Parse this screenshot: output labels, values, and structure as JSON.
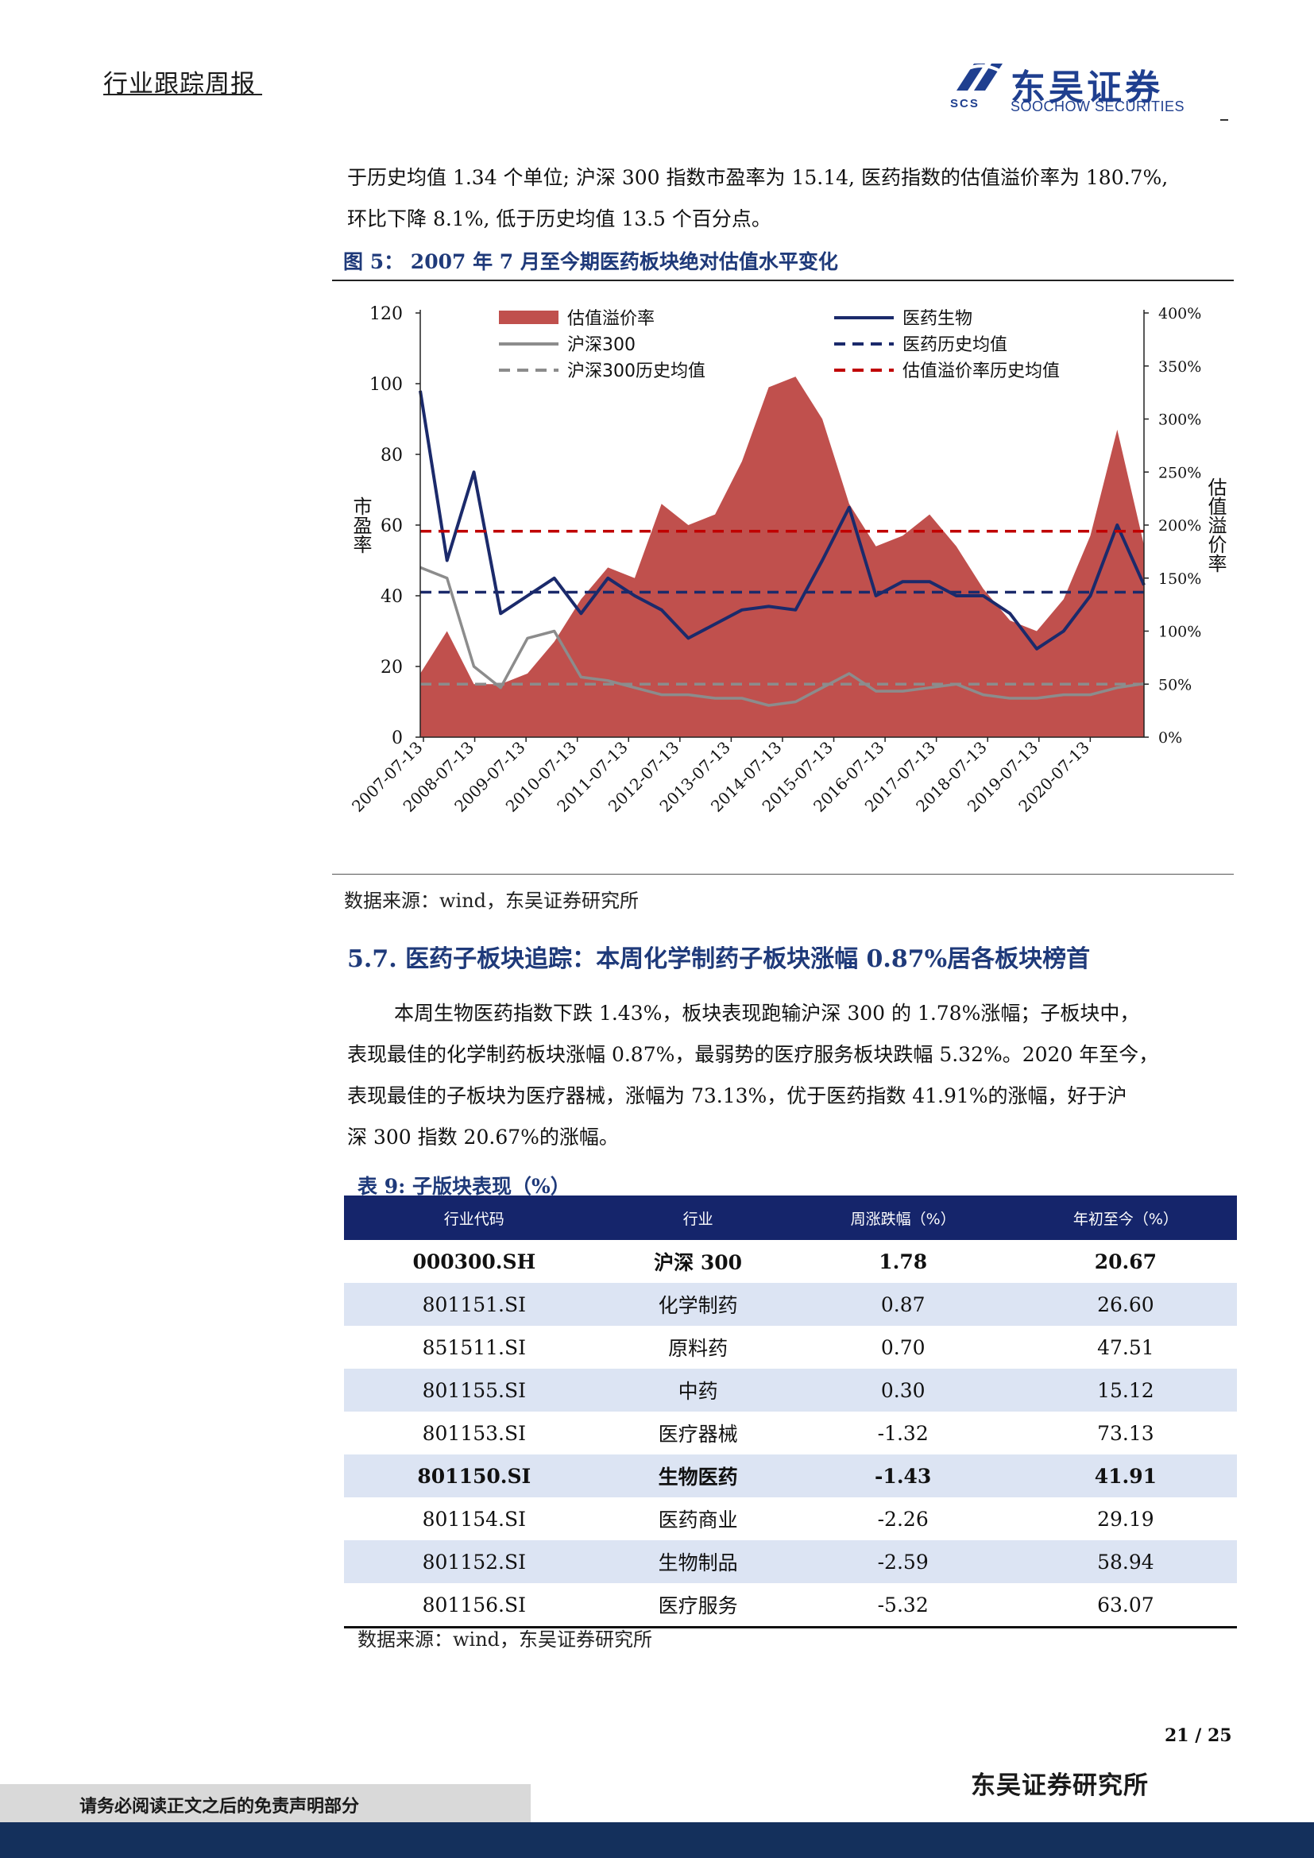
{
  "header": {
    "report_type": "行业跟踪周报",
    "logo_cn": "东吴证券",
    "logo_en": "SOOCHOW SECURITIES",
    "logo_abbr": "SCS"
  },
  "intro": {
    "line1": "于历史均值 1.34 个单位; 沪深 300 指数市盈率为 15.14, 医药指数的估值溢价率为 180.7%,",
    "line2": "环比下降 8.1%, 低于历史均值 13.5 个百分点。"
  },
  "figure5": {
    "title": "图 5：  2007 年 7 月至今期医药板块绝对估值水平变化",
    "source": "数据来源：wind，东吴证券研究所"
  },
  "chart_data": {
    "type": "line",
    "x": [
      "2007-07-13",
      "2008-01-13",
      "2008-07-13",
      "2009-01-13",
      "2009-07-13",
      "2010-01-13",
      "2010-07-13",
      "2011-01-13",
      "2011-07-13",
      "2012-01-13",
      "2012-07-13",
      "2013-01-13",
      "2013-07-13",
      "2014-01-13",
      "2014-07-13",
      "2015-01-13",
      "2015-07-13",
      "2016-01-13",
      "2016-07-13",
      "2017-01-13",
      "2017-07-13",
      "2018-01-13",
      "2018-07-13",
      "2019-01-13",
      "2019-07-13",
      "2020-01-13",
      "2020-07-13",
      "2020-11-20"
    ],
    "x_ticks": [
      "2007-07-13",
      "2008-07-13",
      "2009-07-13",
      "2010-07-13",
      "2011-07-13",
      "2012-07-13",
      "2013-07-13",
      "2014-07-13",
      "2015-07-13",
      "2016-07-13",
      "2017-07-13",
      "2018-07-13",
      "2019-07-13",
      "2020-07-13"
    ],
    "ylabel": "市盈率",
    "ylabel_right": "估值溢价率",
    "ylim": [
      0,
      120
    ],
    "y_ticks": [
      0,
      20,
      40,
      60,
      80,
      100,
      120
    ],
    "ylim_right": [
      0,
      4
    ],
    "y_ticks_right": [
      "0%",
      "50%",
      "100%",
      "150%",
      "200%",
      "250%",
      "300%",
      "350%",
      "400%"
    ],
    "legend_position": "top",
    "series": [
      {
        "name": "估值溢价率",
        "axis": "right",
        "kind": "area",
        "color": "#c0504d",
        "values": [
          0.6,
          1.0,
          0.5,
          0.5,
          0.6,
          0.9,
          1.3,
          1.6,
          1.5,
          2.2,
          2.0,
          2.1,
          2.6,
          3.3,
          3.4,
          3.0,
          2.2,
          1.8,
          1.9,
          2.1,
          1.8,
          1.4,
          1.1,
          1.0,
          1.3,
          1.9,
          2.9,
          1.81
        ]
      },
      {
        "name": "医药生物",
        "axis": "left",
        "kind": "line",
        "color": "#1b2a6b",
        "values": [
          98,
          50,
          75,
          35,
          40,
          45,
          35,
          45,
          40,
          36,
          28,
          32,
          36,
          37,
          36,
          50,
          65,
          40,
          44,
          44,
          40,
          40,
          35,
          25,
          30,
          40,
          60,
          43
        ]
      },
      {
        "name": "沪深300",
        "axis": "left",
        "kind": "line",
        "color": "#8c8c8c",
        "values": [
          48,
          45,
          20,
          14,
          28,
          30,
          17,
          16,
          14,
          12,
          12,
          11,
          11,
          9,
          10,
          14,
          18,
          13,
          13,
          14,
          15,
          12,
          11,
          11,
          12,
          12,
          14,
          15.14
        ]
      },
      {
        "name": "沪深300历史均值",
        "axis": "left",
        "kind": "dashed",
        "color": "#8c8c8c",
        "value": 15
      },
      {
        "name": "医药历史均值",
        "axis": "left",
        "kind": "dashed",
        "color": "#1b2a6b",
        "value": 41
      },
      {
        "name": "估值溢价率历史均值",
        "axis": "right",
        "kind": "dashed",
        "color": "#c00000",
        "value": 1.942
      }
    ]
  },
  "section57": {
    "title": "5.7.  医药子板块追踪：本周化学制药子板块涨幅 0.87%居各板块榜首",
    "lines": [
      "本周生物医药指数下跌 1.43%，板块表现跑输沪深 300 的 1.78%涨幅；子板块中，",
      "表现最佳的化学制药板块涨幅 0.87%，最弱势的医疗服务板块跌幅 5.32%。2020 年至今，",
      "表现最佳的子板块为医疗器械，涨幅为 73.13%，优于医药指数 41.91%的涨幅，好于沪",
      "深 300 指数 20.67%的涨幅。"
    ]
  },
  "table9": {
    "title": "表 9:  子版块表现（%）",
    "headers": [
      "行业代码",
      "行业",
      "周涨跌幅（%）",
      "年初至今（%）"
    ],
    "rows": [
      {
        "code": "000300.SH",
        "name": "沪深 300",
        "week": "1.78",
        "ytd": "20.67",
        "bold": true
      },
      {
        "code": "801151.SI",
        "name": "化学制药",
        "week": "0.87",
        "ytd": "26.60"
      },
      {
        "code": "851511.SI",
        "name": "原料药",
        "week": "0.70",
        "ytd": "47.51"
      },
      {
        "code": "801155.SI",
        "name": "中药",
        "week": "0.30",
        "ytd": "15.12"
      },
      {
        "code": "801153.SI",
        "name": "医疗器械",
        "week": "-1.32",
        "ytd": "73.13"
      },
      {
        "code": "801150.SI",
        "name": "生物医药",
        "week": "-1.43",
        "ytd": "41.91",
        "bold": true
      },
      {
        "code": "801154.SI",
        "name": "医药商业",
        "week": "-2.26",
        "ytd": "29.19"
      },
      {
        "code": "801152.SI",
        "name": "生物制品",
        "week": "-2.59",
        "ytd": "58.94"
      },
      {
        "code": "801156.SI",
        "name": "医疗服务",
        "week": "-5.32",
        "ytd": "63.07"
      }
    ],
    "source": "数据来源：wind，东吴证券研究所"
  },
  "footer": {
    "page": "21 / 25",
    "org": "东吴证券研究所",
    "disclaimer": "请务必阅读正文之后的免责声明部分"
  }
}
